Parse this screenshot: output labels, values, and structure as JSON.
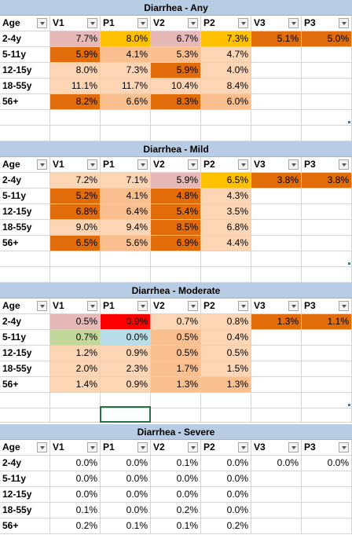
{
  "columns": [
    "Age",
    "V1",
    "P1",
    "V2",
    "P2",
    "V3",
    "P3"
  ],
  "colors": {
    "light": "#fcd5b4",
    "medium": "#fabf8f",
    "dark": "#e26b0a",
    "yellow": "#ffc000",
    "pink": "#e6b8b7",
    "red": "#ff0000",
    "green": "#c4d79b",
    "blue": "#b7dee8",
    "header_band": "#b8cce4"
  },
  "tables": [
    {
      "title": "Diarrhea - Any",
      "rows": [
        {
          "age": "2-4y",
          "values": [
            "7.7%",
            "8.0%",
            "6.7%",
            "7.3%",
            "5.1%",
            "5.0%"
          ],
          "fills": [
            "pink",
            "yellow",
            "pink",
            "yellow",
            "dark",
            "dark"
          ]
        },
        {
          "age": "5-11y",
          "values": [
            "5.9%",
            "4.1%",
            "5.3%",
            "4.7%",
            "",
            ""
          ],
          "fills": [
            "dark",
            "medium",
            "medium",
            "light",
            "",
            ""
          ]
        },
        {
          "age": "12-15y",
          "values": [
            "8.0%",
            "7.3%",
            "5.9%",
            "4.0%",
            "",
            ""
          ],
          "fills": [
            "light",
            "light",
            "dark",
            "light",
            "",
            ""
          ]
        },
        {
          "age": "18-55y",
          "values": [
            "11.1%",
            "11.7%",
            "10.4%",
            "8.4%",
            "",
            ""
          ],
          "fills": [
            "light",
            "light",
            "light",
            "light",
            "",
            ""
          ]
        },
        {
          "age": "56+",
          "values": [
            "8.2%",
            "6.6%",
            "8.3%",
            "6.0%",
            "",
            ""
          ],
          "fills": [
            "dark",
            "medium",
            "dark",
            "medium",
            "",
            ""
          ]
        }
      ]
    },
    {
      "title": "Diarrhea - Mild",
      "rows": [
        {
          "age": "2-4y",
          "values": [
            "7.2%",
            "7.1%",
            "5.9%",
            "6.5%",
            "3.8%",
            "3.8%"
          ],
          "fills": [
            "light",
            "light",
            "pink",
            "yellow",
            "dark",
            "dark"
          ]
        },
        {
          "age": "5-11y",
          "values": [
            "5.2%",
            "4.1%",
            "4.8%",
            "4.3%",
            "",
            ""
          ],
          "fills": [
            "dark",
            "medium",
            "dark",
            "light",
            "",
            ""
          ]
        },
        {
          "age": "12-15y",
          "values": [
            "6.8%",
            "6.4%",
            "5.4%",
            "3.5%",
            "",
            ""
          ],
          "fills": [
            "dark",
            "medium",
            "dark",
            "light",
            "",
            ""
          ]
        },
        {
          "age": "18-55y",
          "values": [
            "9.0%",
            "9.4%",
            "8.5%",
            "6.8%",
            "",
            ""
          ],
          "fills": [
            "light",
            "light",
            "dark",
            "light",
            "",
            ""
          ]
        },
        {
          "age": "56+",
          "values": [
            "6.5%",
            "5.6%",
            "6.9%",
            "4.4%",
            "",
            ""
          ],
          "fills": [
            "dark",
            "medium",
            "dark",
            "light",
            "",
            ""
          ]
        }
      ]
    },
    {
      "title": "Diarrhea - Moderate",
      "rows": [
        {
          "age": "2-4y",
          "values": [
            "0.5%",
            "0.9%",
            "0.7%",
            "0.8%",
            "1.3%",
            "1.1%"
          ],
          "fills": [
            "pink",
            "red",
            "light",
            "light",
            "dark",
            "dark"
          ]
        },
        {
          "age": "5-11y",
          "values": [
            "0.7%",
            "0.0%",
            "0.5%",
            "0.4%",
            "",
            ""
          ],
          "fills": [
            "green",
            "blue",
            "medium",
            "light",
            "",
            ""
          ]
        },
        {
          "age": "12-15y",
          "values": [
            "1.2%",
            "0.9%",
            "0.5%",
            "0.5%",
            "",
            ""
          ],
          "fills": [
            "light",
            "light",
            "medium",
            "light",
            "",
            ""
          ]
        },
        {
          "age": "18-55y",
          "values": [
            "2.0%",
            "2.3%",
            "1.7%",
            "1.5%",
            "",
            ""
          ],
          "fills": [
            "light",
            "light",
            "medium",
            "light",
            "",
            ""
          ]
        },
        {
          "age": "56+",
          "values": [
            "1.4%",
            "0.9%",
            "1.3%",
            "1.3%",
            "",
            ""
          ],
          "fills": [
            "light",
            "light",
            "medium",
            "medium",
            "",
            ""
          ]
        }
      ]
    },
    {
      "title": "Diarrhea - Severe",
      "rows": [
        {
          "age": "2-4y",
          "values": [
            "0.0%",
            "0.0%",
            "0.1%",
            "0.0%",
            "0.0%",
            "0.0%"
          ],
          "fills": [
            "",
            "",
            "",
            "",
            "",
            ""
          ]
        },
        {
          "age": "5-11y",
          "values": [
            "0.0%",
            "0.0%",
            "0.0%",
            "0.0%",
            "",
            ""
          ],
          "fills": [
            "",
            "",
            "",
            "",
            "",
            ""
          ]
        },
        {
          "age": "12-15y",
          "values": [
            "0.0%",
            "0.0%",
            "0.0%",
            "0.0%",
            "",
            ""
          ],
          "fills": [
            "",
            "",
            "",
            "",
            "",
            ""
          ]
        },
        {
          "age": "18-55y",
          "values": [
            "0.1%",
            "0.0%",
            "0.2%",
            "0.0%",
            "",
            ""
          ],
          "fills": [
            "",
            "",
            "",
            "",
            "",
            ""
          ]
        },
        {
          "age": "56+",
          "values": [
            "0.2%",
            "0.1%",
            "0.1%",
            "0.2%",
            "",
            ""
          ],
          "fills": [
            "",
            "",
            "",
            "",
            "",
            ""
          ]
        }
      ]
    }
  ]
}
